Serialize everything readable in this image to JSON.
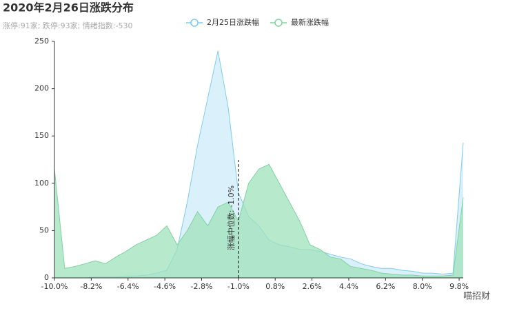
{
  "chart_data": {
    "type": "area",
    "title": "2020年2月26日涨跌分布",
    "subtitle": "涨停:91家; 跌停:93家; 情绪指数:-530",
    "watermark": "喵招财",
    "x": [
      -10,
      -9.5,
      -9,
      -8.5,
      -8,
      -7.5,
      -7,
      -6.5,
      -6,
      -5.5,
      -5,
      -4.5,
      -4,
      -3.5,
      -3,
      -2.5,
      -2,
      -1.5,
      -1,
      -0.5,
      0,
      0.5,
      1,
      1.5,
      2,
      2.5,
      3,
      3.5,
      4,
      4.5,
      5,
      5.5,
      6,
      6.5,
      7,
      7.5,
      8,
      8.5,
      9,
      9.5,
      10
    ],
    "series": [
      {
        "name": "2月25日涨跌幅",
        "color": "#7ecbee",
        "fill": "#d6eefa",
        "values": [
          0,
          0,
          0,
          0,
          1,
          1,
          1,
          2,
          2,
          3,
          5,
          8,
          30,
          80,
          140,
          190,
          240,
          180,
          90,
          65,
          55,
          40,
          35,
          33,
          30,
          30,
          28,
          25,
          22,
          20,
          15,
          12,
          10,
          10,
          8,
          7,
          5,
          5,
          4,
          5,
          143
        ]
      },
      {
        "name": "最新涨跌幅",
        "color": "#7fd4a0",
        "fill": "#9fe2bb",
        "values": [
          115,
          10,
          12,
          15,
          18,
          15,
          22,
          28,
          35,
          40,
          45,
          55,
          35,
          50,
          70,
          55,
          75,
          80,
          60,
          100,
          115,
          120,
          100,
          80,
          60,
          35,
          30,
          22,
          20,
          12,
          10,
          8,
          5,
          4,
          3,
          3,
          2,
          2,
          2,
          3,
          85
        ]
      }
    ],
    "markline": {
      "x": -1.0,
      "label": "涨幅中位数: -1.0%"
    },
    "xlim": [
      -10,
      10
    ],
    "xticks": [
      {
        "value": -10,
        "label": "-10.0%"
      },
      {
        "value": -8.2,
        "label": "-8.2%"
      },
      {
        "value": -6.4,
        "label": "-6.4%"
      },
      {
        "value": -4.6,
        "label": "-4.6%"
      },
      {
        "value": -2.8,
        "label": "-2.8%"
      },
      {
        "value": -1.0,
        "label": "-1.0%"
      },
      {
        "value": 0.8,
        "label": "0.8%"
      },
      {
        "value": 2.6,
        "label": "2.6%"
      },
      {
        "value": 4.4,
        "label": "4.4%"
      },
      {
        "value": 6.2,
        "label": "6.2%"
      },
      {
        "value": 8.0,
        "label": "8.0%"
      },
      {
        "value": 9.8,
        "label": "9.8%"
      }
    ],
    "ylim": [
      0,
      250
    ],
    "yticks": [
      0,
      50,
      100,
      150,
      200,
      250
    ],
    "grid": false
  }
}
